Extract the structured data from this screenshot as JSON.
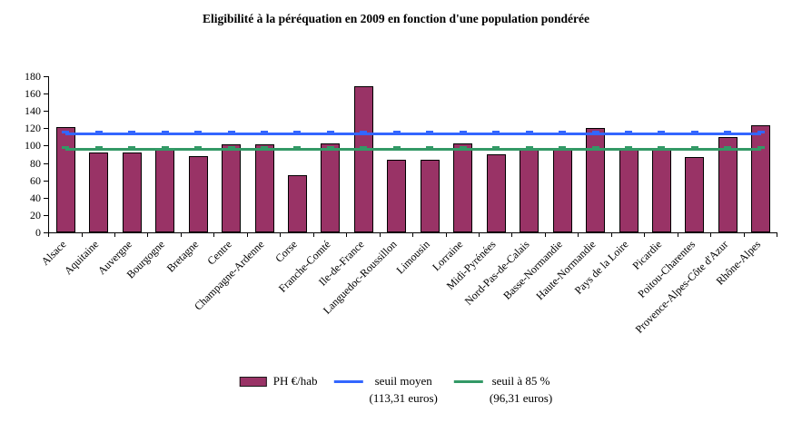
{
  "title": "Eligibilité à la péréquation en 2009 en fonction d'une population pondérée",
  "chart_data": {
    "type": "bar",
    "categories": [
      "Alsace",
      "Aquitaine",
      "Auvergne",
      "Bourgogne",
      "Bretagne",
      "Centre",
      "Champagne-Ardenne",
      "Corse",
      "Franche-Comté",
      "Ile-de-France",
      "Languedoc-Roussillon",
      "Limousin",
      "Lorraine",
      "Midi-Pyrénées",
      "Nord-Pas-de-Calais",
      "Basse-Normandie",
      "Haute-Normandie",
      "Pays de la Loire",
      "Picardie",
      "Poitou-Charentes",
      "Provence-Alpes-Côte d'Azur",
      "Rhône-Alpes"
    ],
    "series": [
      {
        "name": "PH €/hab",
        "type": "bar",
        "color": "#993366",
        "values": [
          121,
          92,
          92,
          97,
          88,
          101,
          102,
          66,
          103,
          168,
          84,
          84,
          103,
          90,
          95,
          97,
          120,
          95,
          95,
          87,
          110,
          124
        ]
      },
      {
        "name": "seuil moyen (113,31 euros)",
        "type": "line",
        "color": "#3366FF",
        "value": 113.31
      },
      {
        "name": "seuil à 85 % (96,31 euros)",
        "type": "line",
        "color": "#339966",
        "value": 96.31
      }
    ],
    "title": "Eligibilité à la péréquation en 2009 en fonction d'une population pondérée",
    "xlabel": "",
    "ylabel": "",
    "ylim": [
      0,
      180
    ],
    "ytick_step": 20,
    "grid": false,
    "legend_position": "bottom"
  },
  "legend": {
    "bar_label": "PH €/hab",
    "mean_label": "seuil moyen",
    "mean_sub": "(113,31 euros)",
    "p85_label": "seuil à 85 %",
    "p85_sub": "(96,31 euros)"
  },
  "colors": {
    "bar_fill": "#993366",
    "bar_border": "#000000",
    "mean_line": "#3366FF",
    "p85_line": "#339966",
    "axis": "#000000"
  }
}
